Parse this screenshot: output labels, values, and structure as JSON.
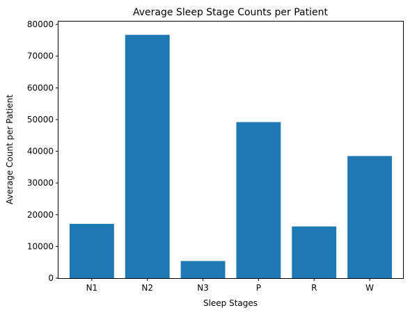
{
  "chart_data": {
    "type": "bar",
    "title": "Average Sleep Stage Counts per Patient",
    "xlabel": "Sleep Stages",
    "ylabel": "Average Count per Patient",
    "categories": [
      "N1",
      "N2",
      "N3",
      "P",
      "R",
      "W"
    ],
    "values": [
      17100,
      76700,
      5400,
      49200,
      16300,
      38500
    ],
    "ylim": [
      0,
      80900
    ],
    "yticks": [
      0,
      10000,
      20000,
      30000,
      40000,
      50000,
      60000,
      70000,
      80000
    ],
    "bar_color": "#1f77b4",
    "grid": false,
    "legend": "none"
  }
}
